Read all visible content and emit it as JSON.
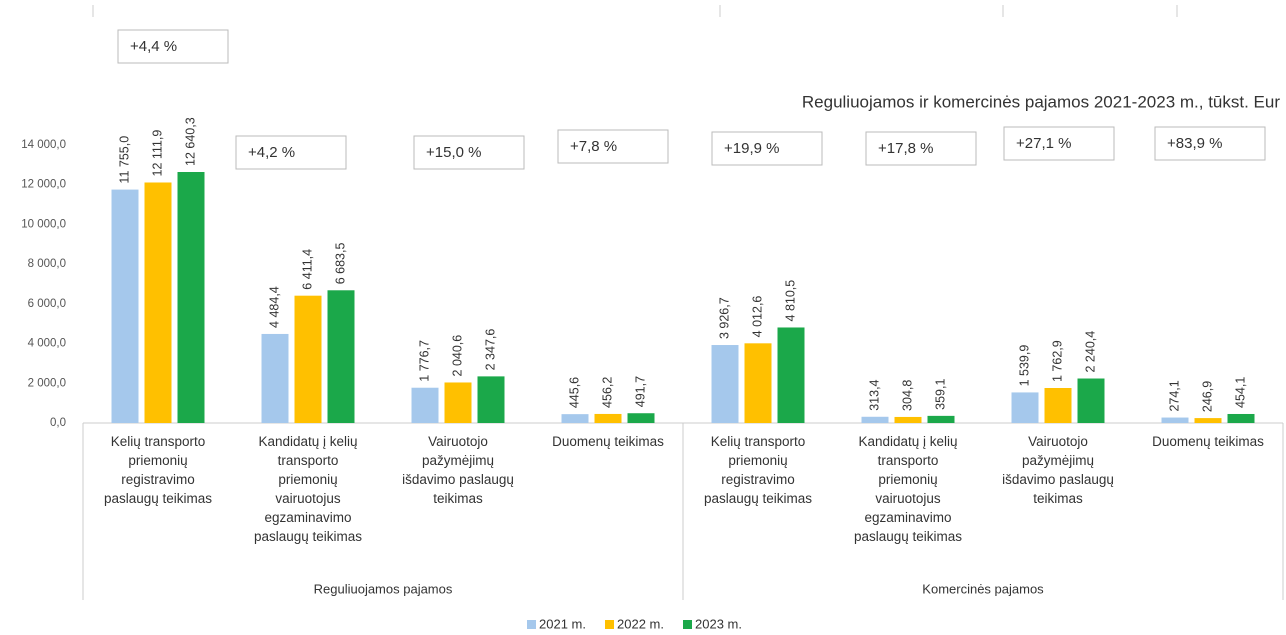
{
  "chart_data": {
    "type": "bar",
    "title": "Reguliuojamos ir komercinės pajamos 2021-2023 m., tūkst. Eur",
    "categories": [
      "Kelių transporto\npriemonių\nregistravimo\npaslaugų teikimas",
      "Kandidatų į kelių\ntransporto\npriemonių\nvairuotojus\negzaminavimo\npaslaugų teikimas",
      "Vairuotojo\npažymėjimų\nišdavimo paslaugų\nteikimas",
      "Duomenų teikimas",
      "Kelių transporto\npriemonių\nregistravimo\npaslaugų teikimas",
      "Kandidatų į kelių\ntransporto\npriemonių\nvairuotojus\negzaminavimo\npaslaugų teikimas",
      "Vairuotojo\npažymėjimų\nišdavimo paslaugų\nteikimas",
      "Duomenų teikimas"
    ],
    "groups": [
      {
        "name": "Reguliuojamos pajamos",
        "start": 0,
        "end": 3
      },
      {
        "name": "Komercinės pajamos",
        "start": 4,
        "end": 7
      }
    ],
    "annotations": [
      "+4,4 %",
      "+4,2 %",
      "+15,0 %",
      "+7,8 %",
      "+19,9 %",
      "+17,8 %",
      "+27,1 %",
      "+83,9 %"
    ],
    "series": [
      {
        "name": "2021 m.",
        "color": "#a5c8ec",
        "values": [
          11755.0,
          4484.4,
          1776.7,
          445.6,
          3926.7,
          313.4,
          1539.9,
          274.1
        ],
        "value_labels": [
          "11 755,0",
          "4 484,4",
          "1 776,7",
          "445,6",
          "3 926,7",
          "313,4",
          "1 539,9",
          "274,1"
        ]
      },
      {
        "name": "2022 m.",
        "color": "#ffc000",
        "values": [
          12111.9,
          6411.4,
          2040.6,
          456.2,
          4012.6,
          304.8,
          1762.9,
          246.9
        ],
        "value_labels": [
          "12 111,9",
          "6 411,4",
          "2 040,6",
          "456,2",
          "4 012,6",
          "304,8",
          "1 762,9",
          "246,9"
        ]
      },
      {
        "name": "2023 m.",
        "color": "#1ba84a",
        "values": [
          12640.3,
          6683.5,
          2347.6,
          491.7,
          4810.5,
          359.1,
          2240.4,
          454.1
        ],
        "value_labels": [
          "12 640,3",
          "6 683,5",
          "2 347,6",
          "491,7",
          "4 810,5",
          "359,1",
          "2 240,4",
          "454,1"
        ]
      }
    ],
    "ylim": [
      0,
      14000
    ],
    "yticks": [
      {
        "value": 0,
        "label": "0,0"
      },
      {
        "value": 2000,
        "label": "2 000,0"
      },
      {
        "value": 4000,
        "label": "4 000,0"
      },
      {
        "value": 6000,
        "label": "6 000,0"
      },
      {
        "value": 8000,
        "label": "8 000,0"
      },
      {
        "value": 10000,
        "label": "10 000,0"
      },
      {
        "value": 12000,
        "label": "12 000,0"
      },
      {
        "value": 14000,
        "label": "14 000,0"
      }
    ],
    "grid": false
  }
}
